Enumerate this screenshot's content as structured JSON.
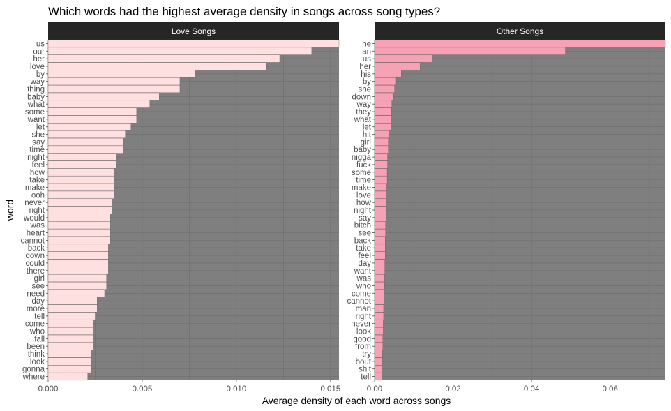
{
  "chart_data": {
    "type": "bar",
    "orientation": "horizontal",
    "title": "Which words had the highest average density in songs across song types?",
    "xlabel": "Average density of each word across songs",
    "ylabel": "word",
    "grid": true,
    "panel_background": "#7f7f7f",
    "grid_color": "#6e6e6e",
    "strip_background": "#262626",
    "panels": [
      {
        "name": "Love Songs",
        "bar_color": "#ffe0e0",
        "xlim": [
          0,
          0.01545
        ],
        "x_ticks": [
          0,
          0.005,
          0.01,
          0.015
        ],
        "x_tick_labels": [
          "0.000",
          "0.005",
          "0.010",
          "0.015"
        ],
        "words": [
          "us",
          "our",
          "her",
          "love",
          "by",
          "way",
          "thing",
          "baby",
          "what",
          "some",
          "want",
          "let",
          "she",
          "say",
          "time",
          "night",
          "feel",
          "how",
          "take",
          "make",
          "ooh",
          "never",
          "right",
          "would",
          "was",
          "heart",
          "cannot",
          "back",
          "down",
          "could",
          "there",
          "girl",
          "see",
          "need",
          "day",
          "more",
          "tell",
          "come",
          "who",
          "fall",
          "been",
          "think",
          "look",
          "gonna",
          "where"
        ],
        "values": [
          0.0155,
          0.014,
          0.0123,
          0.0116,
          0.0078,
          0.007,
          0.007,
          0.0059,
          0.0054,
          0.0047,
          0.0047,
          0.0044,
          0.0041,
          0.004,
          0.004,
          0.0036,
          0.0036,
          0.0035,
          0.0035,
          0.0035,
          0.0035,
          0.0034,
          0.0034,
          0.0033,
          0.0033,
          0.0033,
          0.0033,
          0.0032,
          0.0032,
          0.0032,
          0.0032,
          0.0031,
          0.0031,
          0.003,
          0.0026,
          0.0026,
          0.0025,
          0.0024,
          0.0024,
          0.0024,
          0.0024,
          0.0023,
          0.0023,
          0.0023,
          0.0021
        ]
      },
      {
        "name": "Other Songs",
        "bar_color": "#f7a1b4",
        "xlim": [
          0,
          0.0741
        ],
        "x_ticks": [
          0,
          0.02,
          0.04,
          0.06
        ],
        "x_tick_labels": [
          "0.00",
          "0.02",
          "0.04",
          "0.06"
        ],
        "words": [
          "he",
          "an",
          "us",
          "her",
          "his",
          "by",
          "she",
          "down",
          "way",
          "they",
          "what",
          "let",
          "hit",
          "girl",
          "baby",
          "nigga",
          "fuck",
          "some",
          "time",
          "make",
          "love",
          "how",
          "night",
          "say",
          "bitch",
          "see",
          "back",
          "take",
          "feel",
          "day",
          "want",
          "was",
          "who",
          "come",
          "cannot",
          "man",
          "right",
          "never",
          "look",
          "good",
          "from",
          "try",
          "bout",
          "shit",
          "tell"
        ],
        "values": [
          0.0741,
          0.0486,
          0.0147,
          0.0116,
          0.0068,
          0.0055,
          0.0051,
          0.0048,
          0.0044,
          0.0043,
          0.0042,
          0.0042,
          0.0036,
          0.0035,
          0.0035,
          0.0033,
          0.0033,
          0.0032,
          0.0032,
          0.0031,
          0.0031,
          0.003,
          0.003,
          0.0029,
          0.0028,
          0.0028,
          0.0027,
          0.0027,
          0.0027,
          0.0026,
          0.0026,
          0.0025,
          0.0025,
          0.0024,
          0.0024,
          0.0023,
          0.0023,
          0.0022,
          0.0022,
          0.0021,
          0.0021,
          0.002,
          0.002,
          0.0019,
          0.0019
        ]
      }
    ]
  }
}
